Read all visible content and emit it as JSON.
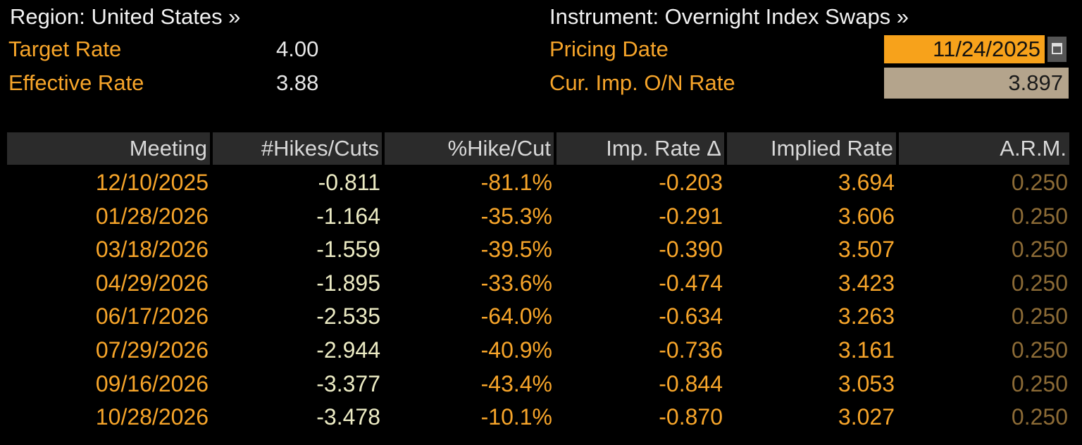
{
  "header": {
    "region": "Region: United States »",
    "instrument": "Instrument: Overnight Index Swaps »",
    "target_rate": {
      "label": "Target Rate",
      "value": "4.00"
    },
    "effective_rate": {
      "label": "Effective Rate",
      "value": "3.88"
    },
    "pricing_date": {
      "label": "Pricing Date",
      "value": "11/24/2025"
    },
    "implied_on_rate": {
      "label": "Cur. Imp. O/N Rate",
      "value": "3.897"
    }
  },
  "table": {
    "columns": [
      "Meeting",
      "#Hikes/Cuts",
      "%Hike/Cut",
      "Imp. Rate Δ",
      "Implied Rate",
      "A.R.M."
    ],
    "rows": [
      [
        "12/10/2025",
        "-0.811",
        "-81.1%",
        "-0.203",
        "3.694",
        "0.250"
      ],
      [
        "01/28/2026",
        "-1.164",
        "-35.3%",
        "-0.291",
        "3.606",
        "0.250"
      ],
      [
        "03/18/2026",
        "-1.559",
        "-39.5%",
        "-0.390",
        "3.507",
        "0.250"
      ],
      [
        "04/29/2026",
        "-1.895",
        "-33.6%",
        "-0.474",
        "3.423",
        "0.250"
      ],
      [
        "06/17/2026",
        "-2.535",
        "-64.0%",
        "-0.634",
        "3.263",
        "0.250"
      ],
      [
        "07/29/2026",
        "-2.944",
        "-40.9%",
        "-0.736",
        "3.161",
        "0.250"
      ],
      [
        "09/16/2026",
        "-3.377",
        "-43.4%",
        "-0.844",
        "3.053",
        "0.250"
      ],
      [
        "10/28/2026",
        "-3.478",
        "-10.1%",
        "-0.870",
        "3.027",
        "0.250"
      ]
    ]
  }
}
